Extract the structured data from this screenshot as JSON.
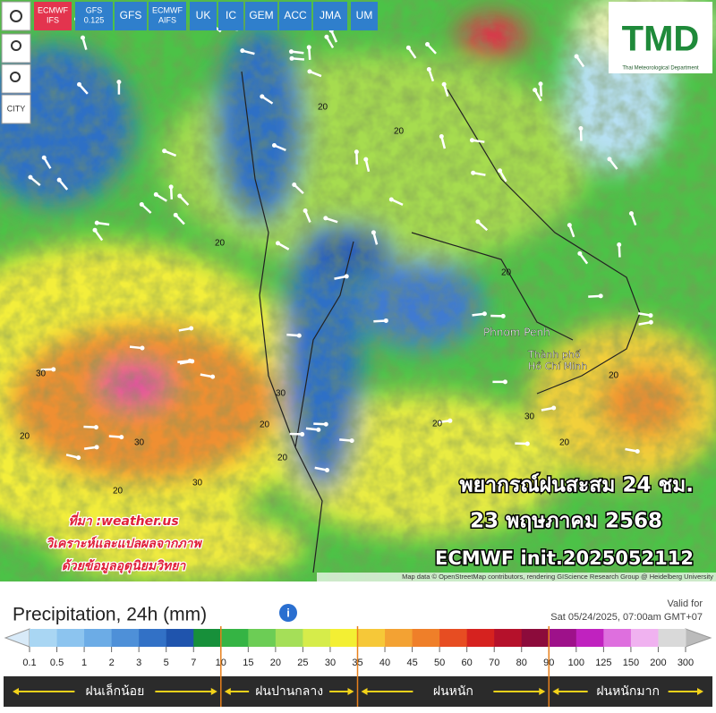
{
  "toolbar": {
    "buttons": [
      [
        "ECMWF",
        "IFS"
      ],
      [
        "GFS",
        "0.125"
      ],
      [
        "GFS"
      ],
      [
        "ECMWF",
        "AIFS"
      ],
      [
        "UK"
      ],
      [
        "IC"
      ],
      [
        "GEM"
      ],
      [
        "ACC"
      ],
      [
        "JMA"
      ],
      [
        "UM"
      ]
    ],
    "city": "CITY"
  },
  "logo": {
    "text": "TMD",
    "subtitle": "Thai Meteorological Department"
  },
  "map": {
    "places": [
      "Phnom Penh",
      "Thành phố",
      "Hồ Chí Minh"
    ],
    "contour_labels": [
      "20",
      "20",
      "30",
      "30",
      "20",
      "20",
      "30",
      "20",
      "20",
      "20",
      "30",
      "20",
      "20",
      "30",
      "20",
      "20"
    ]
  },
  "overlay": {
    "title": "พยากรณ์ฝนสะสม 24 ชม.",
    "date": "23 พฤษภาคม 2568",
    "model": "ECMWF init.2025052112",
    "source": [
      "ที่มา :weather.us",
      "วิเคราะห์และแปลผลจากภาพ",
      "ด้วยข้อมูลอุตุนิยมวิทยา"
    ]
  },
  "attribution": "Map data © OpenStreetMap contributors, rendering GIScience Research Group @ Heidelberg University",
  "legend": {
    "title": "Precipitation, 24h (mm)",
    "valid_label": "Valid for",
    "valid_time": "Sat 05/24/2025, 07:00am GMT+07",
    "scale": [
      0.1,
      0.5,
      1,
      2,
      3,
      5,
      7,
      10,
      15,
      20,
      25,
      30,
      35,
      40,
      45,
      50,
      60,
      70,
      80,
      90,
      100,
      125,
      150,
      200,
      300
    ],
    "colors": [
      "#a9d6f3",
      "#8cc4ef",
      "#6cacE6",
      "#4e90d8",
      "#3271c6",
      "#1f54ad",
      "#17903a",
      "#35b444",
      "#6ccd55",
      "#a5df58",
      "#d6ec4a",
      "#f3ef33",
      "#f6c838",
      "#f3a233",
      "#ef7f29",
      "#e74d22",
      "#d6221f",
      "#b5112b",
      "#8c0b3b",
      "#9e118a",
      "#c022bf",
      "#de6fde",
      "#f0b2f0",
      "#d9d9d9"
    ],
    "categories": [
      {
        "label": "ฝนเล็กน้อย",
        "from": 0.1,
        "to": 10
      },
      {
        "label": "ฝนปานกลาง",
        "from": 10,
        "to": 35
      },
      {
        "label": "ฝนหนัก",
        "from": 35,
        "to": 90
      },
      {
        "label": "ฝนหนักมาก",
        "from": 90,
        "to": 300
      }
    ]
  }
}
